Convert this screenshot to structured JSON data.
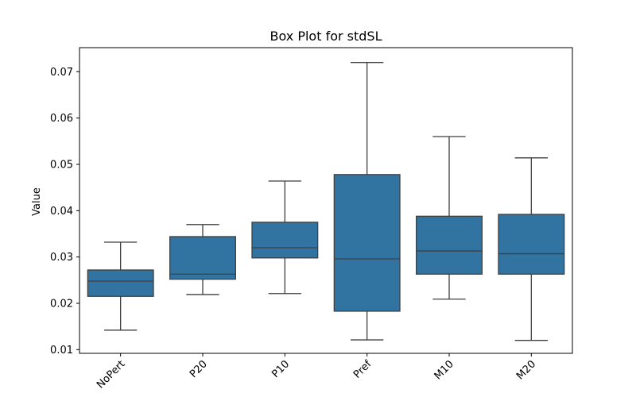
{
  "chart_data": {
    "type": "box",
    "title": "Box Plot for stdSL",
    "xlabel": "",
    "ylabel": "Value",
    "ylim": [
      0.0092,
      0.0752
    ],
    "yticks": [
      "0.01",
      "0.02",
      "0.03",
      "0.04",
      "0.05",
      "0.06",
      "0.07"
    ],
    "grid": false,
    "categories": [
      "NoPert",
      "P20",
      "P10",
      "Pref",
      "M10",
      "M20"
    ],
    "boxes": [
      {
        "category": "NoPert",
        "whisker_low": 0.0142,
        "q1": 0.0215,
        "median": 0.0248,
        "q3": 0.0272,
        "whisker_high": 0.0332
      },
      {
        "category": "P20",
        "whisker_low": 0.0219,
        "q1": 0.0252,
        "median": 0.0263,
        "q3": 0.0344,
        "whisker_high": 0.037
      },
      {
        "category": "P10",
        "whisker_low": 0.0221,
        "q1": 0.0298,
        "median": 0.032,
        "q3": 0.0375,
        "whisker_high": 0.0464
      },
      {
        "category": "Pref",
        "whisker_low": 0.0121,
        "q1": 0.0183,
        "median": 0.0296,
        "q3": 0.0478,
        "whisker_high": 0.072
      },
      {
        "category": "M10",
        "whisker_low": 0.0209,
        "q1": 0.0263,
        "median": 0.0313,
        "q3": 0.0388,
        "whisker_high": 0.056
      },
      {
        "category": "M20",
        "whisker_low": 0.012,
        "q1": 0.0263,
        "median": 0.0307,
        "q3": 0.0392,
        "whisker_high": 0.0514
      }
    ],
    "colors": {
      "box_fill": "#3274a1",
      "line": "#3f3f3f"
    }
  }
}
